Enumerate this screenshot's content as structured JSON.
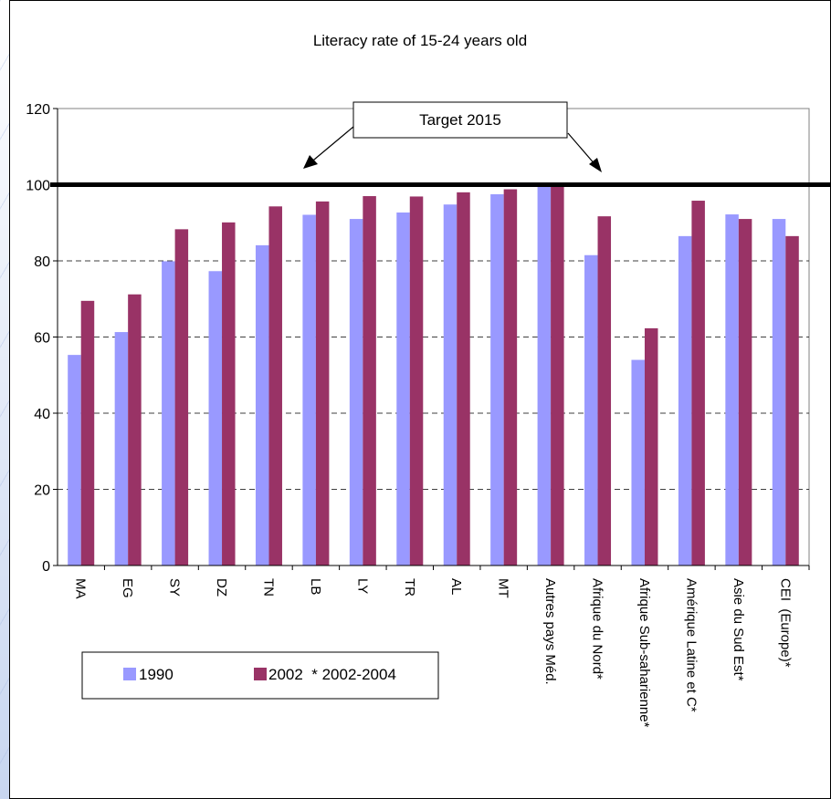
{
  "chart_data": {
    "type": "bar",
    "title": "Literacy rate of 15-24 years old",
    "categories": [
      "MA",
      "EG",
      "SY",
      "DZ",
      "TN",
      "LB",
      "LY",
      "TR",
      "AL",
      "MT",
      "Autres pays Méd.",
      "Afrique du Nord*",
      "Afrique Sub-saharienne*",
      "Amérique Latine et C*",
      "Asie du Sud Est*",
      "CEI  (Europe)*"
    ],
    "series": [
      {
        "name": "1990",
        "color": "#9999ff",
        "values": [
          55.3,
          61.3,
          79.9,
          77.3,
          84.1,
          92.1,
          91.0,
          92.7,
          94.8,
          97.5,
          99.6,
          81.5,
          54.0,
          86.5,
          92.2,
          91.0
        ]
      },
      {
        "name": "2002  * 2002-2004",
        "color": "#993366",
        "values": [
          69.5,
          71.2,
          88.3,
          90.1,
          94.3,
          95.6,
          97.0,
          96.9,
          98.0,
          98.8,
          99.6,
          91.7,
          62.3,
          95.8,
          91.0,
          86.5
        ]
      }
    ],
    "ylim": [
      0,
      120
    ],
    "yticks": [
      0,
      20,
      40,
      60,
      80,
      100,
      120
    ],
    "grid": true,
    "target": {
      "value": 100,
      "label": "Target 2015"
    },
    "legend": "bottom-left"
  }
}
